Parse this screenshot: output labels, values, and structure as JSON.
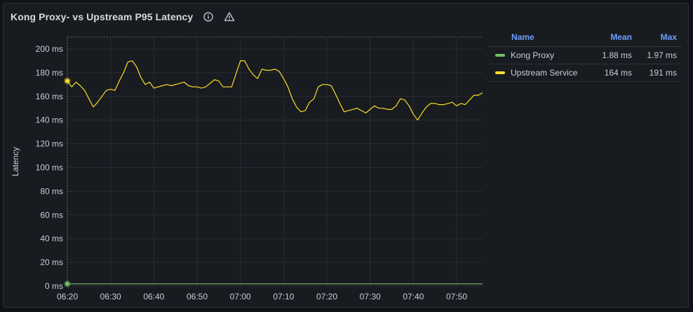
{
  "panel": {
    "title": "Kong Proxy- vs Upstream P95 Latency",
    "icons": [
      "info-icon",
      "warning-icon"
    ]
  },
  "legend": {
    "headers": {
      "name": "Name",
      "mean": "Mean",
      "max": "Max"
    },
    "rows": [
      {
        "name": "Kong Proxy",
        "mean": "1.88 ms",
        "max": "1.97 ms",
        "color": "#73bf69"
      },
      {
        "name": "Upstream Service",
        "mean": "164 ms",
        "max": "191 ms",
        "color": "#fade2a"
      }
    ]
  },
  "chart_data": {
    "type": "line",
    "ylabel": "Latency",
    "yticks": [
      "0 ms",
      "20 ms",
      "40 ms",
      "60 ms",
      "80 ms",
      "100 ms",
      "120 ms",
      "140 ms",
      "160 ms",
      "180 ms",
      "200 ms"
    ],
    "xticks": [
      "06:20",
      "06:30",
      "06:40",
      "06:50",
      "07:00",
      "07:10",
      "07:20",
      "07:30",
      "07:40",
      "07:50"
    ],
    "x_unit": "minute",
    "xlim": [
      "06:20",
      "07:56"
    ],
    "ylim": [
      0,
      210
    ],
    "grid": true,
    "series": [
      {
        "name": "Kong Proxy",
        "color": "#73bf69",
        "x": [
          "06:20",
          "06:30",
          "06:40",
          "06:50",
          "07:00",
          "07:10",
          "07:20",
          "07:30",
          "07:40",
          "07:50",
          "07:56"
        ],
        "values": [
          1.9,
          1.9,
          1.9,
          1.9,
          1.9,
          1.9,
          1.9,
          1.9,
          1.9,
          1.9,
          1.9
        ]
      },
      {
        "name": "Upstream Service",
        "color": "#fade2a",
        "x": [
          "06:20",
          "06:21",
          "06:22",
          "06:23",
          "06:24",
          "06:25",
          "06:26",
          "06:27",
          "06:28",
          "06:29",
          "06:30",
          "06:31",
          "06:32",
          "06:33",
          "06:34",
          "06:35",
          "06:36",
          "06:37",
          "06:38",
          "06:39",
          "06:40",
          "06:41",
          "06:42",
          "06:43",
          "06:44",
          "06:45",
          "06:46",
          "06:47",
          "06:48",
          "06:49",
          "06:50",
          "06:51",
          "06:52",
          "06:53",
          "06:54",
          "06:55",
          "06:56",
          "06:57",
          "06:58",
          "06:59",
          "07:00",
          "07:01",
          "07:02",
          "07:03",
          "07:04",
          "07:05",
          "07:06",
          "07:07",
          "07:08",
          "07:09",
          "07:10",
          "07:11",
          "07:12",
          "07:13",
          "07:14",
          "07:15",
          "07:16",
          "07:17",
          "07:18",
          "07:19",
          "07:20",
          "07:21",
          "07:22",
          "07:23",
          "07:24",
          "07:25",
          "07:26",
          "07:27",
          "07:28",
          "07:29",
          "07:30",
          "07:31",
          "07:32",
          "07:33",
          "07:34",
          "07:35",
          "07:36",
          "07:37",
          "07:38",
          "07:39",
          "07:40",
          "07:41",
          "07:42",
          "07:43",
          "07:44",
          "07:45",
          "07:46",
          "07:47",
          "07:48",
          "07:49",
          "07:50",
          "07:51",
          "07:52",
          "07:53",
          "07:54",
          "07:55",
          "07:56"
        ],
        "values": [
          173,
          168,
          172,
          169,
          165,
          158,
          151,
          155,
          160,
          165,
          166,
          165,
          173,
          180,
          189,
          190,
          185,
          176,
          170,
          172,
          167,
          168,
          169,
          170,
          169,
          170,
          171,
          172,
          169,
          168,
          168,
          167,
          168,
          171,
          174,
          173,
          168,
          168,
          168,
          179,
          190,
          190,
          183,
          178,
          175,
          183,
          182,
          182,
          183,
          181,
          175,
          168,
          158,
          151,
          147,
          148,
          155,
          158,
          168,
          170,
          170,
          169,
          162,
          154,
          147,
          148,
          149,
          150,
          148,
          146,
          149,
          152,
          150,
          150,
          149,
          149,
          152,
          158,
          157,
          152,
          145,
          140,
          146,
          151,
          154,
          154,
          153,
          153,
          154,
          155,
          152,
          154,
          153,
          157,
          161,
          161,
          163
        ]
      }
    ]
  }
}
